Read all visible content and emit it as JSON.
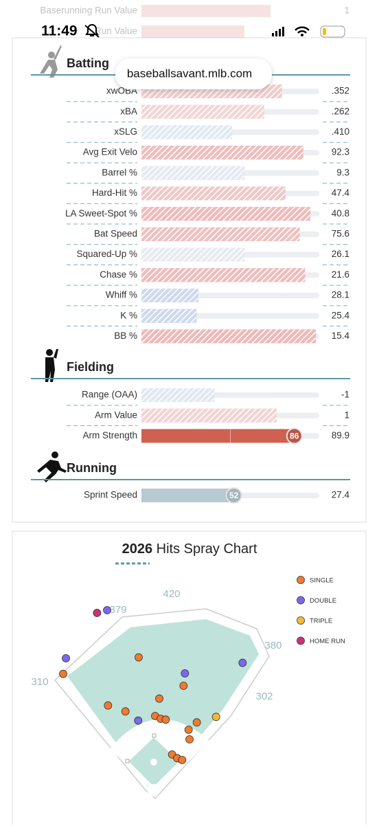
{
  "status_bar": {
    "time": "11:49"
  },
  "url": "baseballsavant.mlb.com",
  "faded_rows": [
    {
      "label": "Baserunning Run Value",
      "value": "1"
    },
    {
      "label": "Run Value"
    }
  ],
  "sections": [
    {
      "title": "Batting",
      "rows": [
        {
          "label": "xwOBA",
          "value": ".352",
          "percentile": 79,
          "color": "#dc8f8f"
        },
        {
          "label": "xBA",
          "value": ".262",
          "percentile": 69,
          "color": "#e2a3a3"
        },
        {
          "label": "xSLG",
          "value": ".410",
          "percentile": 51,
          "color": "#bcd0e2"
        },
        {
          "label": "Avg Exit Velo",
          "value": "92.3",
          "percentile": 91,
          "color": "#d86f6f"
        },
        {
          "label": "Barrel %",
          "value": "9.3",
          "percentile": 58,
          "color": "#c7d0de"
        },
        {
          "label": "Hard-Hit %",
          "value": "47.4",
          "percentile": 81,
          "color": "#db8484"
        },
        {
          "label": "LA Sweet-Spot %",
          "value": "40.8",
          "percentile": 95,
          "color": "#d66868"
        },
        {
          "label": "Bat Speed",
          "value": "75.6",
          "percentile": 89,
          "color": "#d87575"
        },
        {
          "label": "Squared-Up %",
          "value": "26.1",
          "percentile": 58,
          "color": "#c9d2dd"
        },
        {
          "label": "Chase %",
          "value": "21.6",
          "percentile": 92,
          "color": "#d76d6d"
        },
        {
          "label": "Whiff %",
          "value": "28.1",
          "percentile": 32,
          "color": "#94abd8"
        },
        {
          "label": "K %",
          "value": "25.4",
          "percentile": 31,
          "color": "#94abd8"
        },
        {
          "label": "BB %",
          "value": "15.4",
          "percentile": 98,
          "color": "#d66363"
        }
      ]
    },
    {
      "title": "Fielding",
      "rows": [
        {
          "label": "Range (OAA)",
          "value": "-1",
          "percentile": 41,
          "color": "#bccbe0"
        },
        {
          "label": "Arm Value",
          "value": "1",
          "percentile": 76,
          "color": "#e0a0a0"
        },
        {
          "label": "Arm Strength",
          "value": "89.9",
          "percentile": 86,
          "color": "#d0604f",
          "solid": true
        }
      ]
    },
    {
      "title": "Running",
      "rows": [
        {
          "label": "Sprint Speed",
          "value": "27.4",
          "percentile": 52,
          "color": "#b7cad1",
          "solid": true
        }
      ]
    }
  ],
  "spray_chart": {
    "year": "2026",
    "title": "Hits Spray Chart",
    "distances": [
      "310",
      "379",
      "420",
      "380",
      "302"
    ],
    "legend": [
      {
        "name": "SINGLE",
        "color": "#f07a2e",
        "hits": [
          [
            -33,
            290
          ],
          [
            -198,
            254
          ],
          [
            65,
            228
          ],
          [
            12,
            200
          ],
          [
            -100,
            185
          ],
          [
            -62,
            172
          ],
          [
            3,
            162
          ],
          [
            15,
            156
          ],
          [
            26,
            154
          ],
          [
            94,
            148
          ],
          [
            76,
            132
          ],
          [
            78,
            111
          ],
          [
            40,
            78
          ],
          [
            51,
            70
          ],
          [
            62,
            66
          ]
        ]
      },
      {
        "name": "DOUBLE",
        "color": "#7b68ee",
        "hits": [
          [
            -102,
            393
          ],
          [
            -192,
            288
          ],
          [
            68,
            255
          ],
          [
            194,
            278
          ],
          [
            -34,
            152
          ]
        ]
      },
      {
        "name": "TRIPLE",
        "color": "#f5b935",
        "hits": [
          [
            136,
            160
          ]
        ]
      },
      {
        "name": "HOME RUN",
        "color": "#cc3377",
        "hits": [
          [
            -124,
            387
          ]
        ]
      }
    ]
  }
}
